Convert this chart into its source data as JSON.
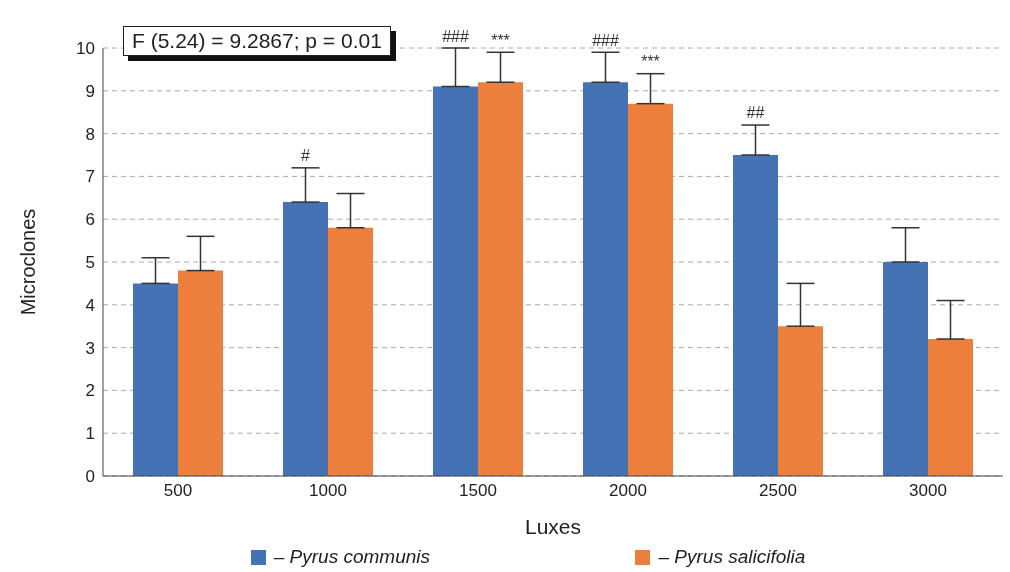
{
  "chart_data": {
    "type": "bar",
    "xlabel": "Luxes",
    "ylabel": "Microclones",
    "categories": [
      "500",
      "1000",
      "1500",
      "2000",
      "2500",
      "3000"
    ],
    "series": [
      {
        "name": "– Pyrus communis",
        "color": "#4472b4",
        "values": [
          4.5,
          6.4,
          9.1,
          9.2,
          7.5,
          5.0
        ],
        "errors": [
          [
            4.5,
            5.1
          ],
          [
            6.4,
            7.2
          ],
          [
            9.1,
            10.0
          ],
          [
            9.2,
            9.9
          ],
          [
            7.5,
            8.2
          ],
          [
            5.0,
            5.8
          ]
        ]
      },
      {
        "name": "– Pyrus salicifolia",
        "color": "#ed7f3c",
        "values": [
          4.8,
          5.8,
          9.2,
          8.7,
          3.5,
          3.2
        ],
        "errors": [
          [
            4.8,
            5.6
          ],
          [
            5.8,
            6.6
          ],
          [
            9.2,
            9.9
          ],
          [
            8.7,
            9.4
          ],
          [
            3.5,
            4.5
          ],
          [
            3.2,
            4.1
          ]
        ]
      }
    ],
    "ylim": [
      0,
      10
    ],
    "yticks": [
      0,
      1,
      2,
      3,
      4,
      5,
      6,
      7,
      8,
      9,
      10
    ],
    "grid": "y",
    "legend": "bottom",
    "annotations": [
      "F (5.24) = 9.2867; p = 0.01",
      {
        "text": "#",
        "x": "1000",
        "y": 6.4
      },
      {
        "text": "###",
        "x": "1500",
        "y": 9.1
      },
      {
        "text": "***",
        "x": "1500",
        "y": 9.2
      },
      {
        "text": "###",
        "x": "2000",
        "y": 9.2
      },
      {
        "text": "***",
        "x": "2000",
        "y": 8.7
      },
      {
        "text": "##",
        "x": "2500",
        "y": 7.5
      }
    ]
  }
}
